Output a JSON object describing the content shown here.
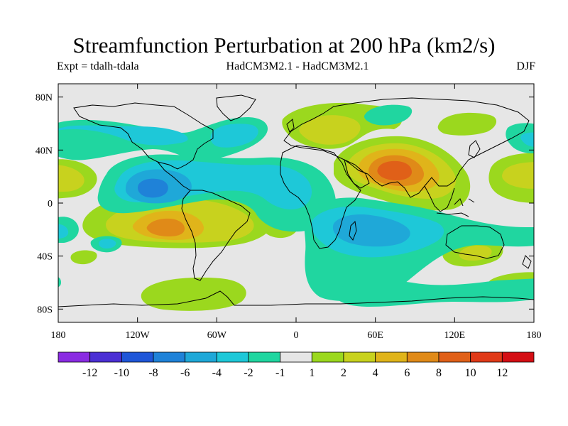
{
  "title": "Streamfunction Perturbation at 200 hPa (km2/s)",
  "subtitle_left": "Expt = tdalh-tdala",
  "subtitle_center": "HadCM3M2.1 - HadCM3M2.1",
  "subtitle_right": "DJF",
  "map": {
    "projection": "cylindrical equidistant",
    "lon_range": [
      -180,
      180
    ],
    "lat_range": [
      -90,
      90
    ],
    "lat_ticks": [
      {
        "value": 80,
        "label": "80N"
      },
      {
        "value": 40,
        "label": "40N"
      },
      {
        "value": 0,
        "label": "0"
      },
      {
        "value": -40,
        "label": "40S"
      },
      {
        "value": -80,
        "label": "80S"
      }
    ],
    "lon_ticks": [
      {
        "value": -180,
        "label": "180"
      },
      {
        "value": -120,
        "label": "120W"
      },
      {
        "value": -60,
        "label": "60W"
      },
      {
        "value": 0,
        "label": "0"
      },
      {
        "value": 60,
        "label": "60E"
      },
      {
        "value": 120,
        "label": "120E"
      },
      {
        "value": 180,
        "label": "180"
      }
    ]
  },
  "colorbar": {
    "labels": [
      "-12",
      "-10",
      "-8",
      "-6",
      "-4",
      "-2",
      "-1",
      "1",
      "2",
      "4",
      "6",
      "8",
      "10",
      "12"
    ],
    "colors": [
      "#8a2be2",
      "#4b2fd4",
      "#1f56d8",
      "#1f82d8",
      "#1fa8d8",
      "#1ec8d8",
      "#20d6a0",
      "#e6e6e6",
      "#9bd81e",
      "#c8d21e",
      "#e0b41a",
      "#e08a18",
      "#e06018",
      "#e03a18",
      "#d40e14"
    ]
  },
  "chart_data": {
    "type": "contour-map",
    "variable": "Streamfunction Perturbation at 200 hPa",
    "units": "km2/s",
    "season": "DJF",
    "levels": [
      -12,
      -10,
      -8,
      -6,
      -4,
      -2,
      -1,
      1,
      2,
      4,
      6,
      8,
      10,
      12
    ],
    "features": [
      {
        "name": "high-south-asia",
        "lon": 77,
        "lat": 25,
        "value": 8
      },
      {
        "name": "high-north-atlantic-europe",
        "lon": 25,
        "lat": 48,
        "value": 3
      },
      {
        "name": "high-south-pacific",
        "lon": -95,
        "lat": -18,
        "value": 6
      },
      {
        "name": "high-south-pacific-secondary",
        "lon": -65,
        "lat": -28,
        "value": 3
      },
      {
        "name": "high-australia",
        "lon": 125,
        "lat": -38,
        "value": 2
      },
      {
        "name": "high-east-asia",
        "lon": 150,
        "lat": 45,
        "value": 2
      },
      {
        "name": "high-east-pacific",
        "lon": 175,
        "lat": 22,
        "value": 3
      },
      {
        "name": "high-west-pacific-edge",
        "lon": -172,
        "lat": 22,
        "value": 3
      },
      {
        "name": "high-southern-ocean-west",
        "lon": -95,
        "lat": -62,
        "value": 2
      },
      {
        "name": "high-southern-ocean-atlantic",
        "lon": -20,
        "lat": -10,
        "value": 2
      },
      {
        "name": "low-east-pacific",
        "lon": -105,
        "lat": 10,
        "value": -6
      },
      {
        "name": "low-atlantic-tropics",
        "lon": -40,
        "lat": 20,
        "value": -4
      },
      {
        "name": "low-indian-ocean",
        "lon": 60,
        "lat": -15,
        "value": -5
      },
      {
        "name": "low-west-pacific",
        "lon": -165,
        "lat": 44,
        "value": -3
      },
      {
        "name": "low-north-america",
        "lon": -110,
        "lat": 42,
        "value": -3
      },
      {
        "name": "low-south-indian-belt",
        "lon": 90,
        "lat": -45,
        "value": -2
      },
      {
        "name": "low-southern-ocean-east",
        "lon": 140,
        "lat": -60,
        "value": -2
      }
    ]
  }
}
